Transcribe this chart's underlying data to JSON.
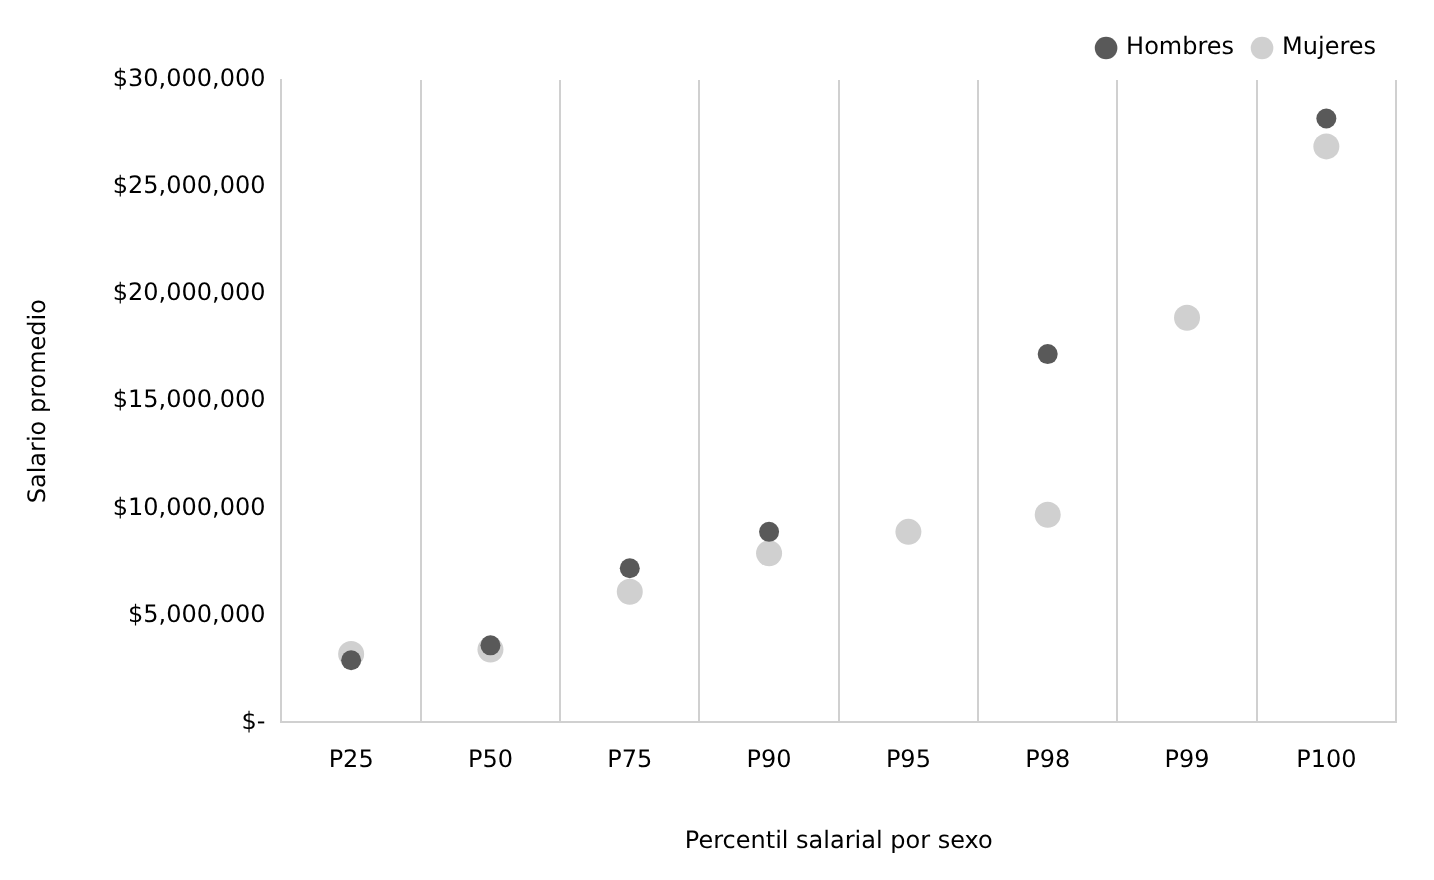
{
  "chart_data": {
    "type": "scatter",
    "xlabel": "Percentil salarial por sexo",
    "ylabel": "Salario promedio",
    "categories": [
      "P25",
      "P50",
      "P75",
      "P90",
      "P95",
      "P98",
      "P99",
      "P100"
    ],
    "series": [
      {
        "name": "Hombres",
        "color": "#595959",
        "values": [
          2900000,
          3600000,
          7200000,
          8900000,
          null,
          17200000,
          null,
          28200000
        ]
      },
      {
        "name": "Mujeres",
        "color": "#d0d0d0",
        "values": [
          3200000,
          3400000,
          6100000,
          7900000,
          8900000,
          9700000,
          18900000,
          26900000
        ]
      }
    ],
    "ylim": [
      0,
      30000000
    ],
    "yticks": [
      {
        "value": 0,
        "label": "$-"
      },
      {
        "value": 5000000,
        "label": "$5,000,000"
      },
      {
        "value": 10000000,
        "label": "$10,000,000"
      },
      {
        "value": 15000000,
        "label": "$15,000,000"
      },
      {
        "value": 20000000,
        "label": "$20,000,000"
      },
      {
        "value": 25000000,
        "label": "$25,000,000"
      },
      {
        "value": 30000000,
        "label": "$30,000,000"
      }
    ],
    "grid": "x",
    "legend": "top right",
    "marker": "circle"
  }
}
